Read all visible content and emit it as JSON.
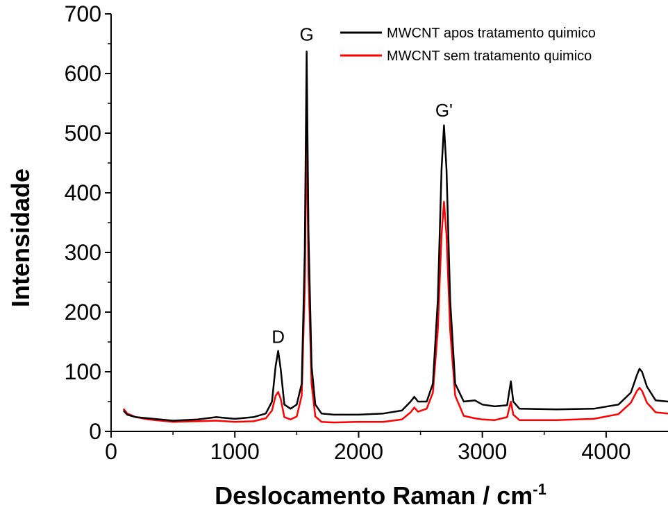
{
  "chart_data": {
    "type": "line",
    "xlabel": "Deslocamento Raman / cm",
    "xlabel_superscript": "-1",
    "ylabel": "Intensidade",
    "xlim": [
      0,
      4500
    ],
    "ylim": [
      0,
      700
    ],
    "x_ticks": [
      0,
      1000,
      2000,
      3000,
      4000
    ],
    "y_ticks": [
      0,
      100,
      200,
      300,
      400,
      500,
      600,
      700
    ],
    "legend_position": "top-right",
    "annotations": [
      {
        "text": "D",
        "x": 1350,
        "y": 148
      },
      {
        "text": "G",
        "x": 1580,
        "y": 655
      },
      {
        "text": "G'",
        "x": 2690,
        "y": 528
      }
    ],
    "series": [
      {
        "name": "MWCNT apos tratamento quimico",
        "color": "#000000",
        "points": [
          [
            100,
            35
          ],
          [
            130,
            28
          ],
          [
            200,
            24
          ],
          [
            300,
            22
          ],
          [
            500,
            18
          ],
          [
            700,
            20
          ],
          [
            850,
            24
          ],
          [
            1000,
            21
          ],
          [
            1150,
            24
          ],
          [
            1250,
            30
          ],
          [
            1300,
            50
          ],
          [
            1330,
            110
          ],
          [
            1350,
            135
          ],
          [
            1370,
            105
          ],
          [
            1400,
            45
          ],
          [
            1450,
            38
          ],
          [
            1500,
            45
          ],
          [
            1540,
            80
          ],
          [
            1565,
            300
          ],
          [
            1580,
            637
          ],
          [
            1595,
            330
          ],
          [
            1620,
            110
          ],
          [
            1650,
            45
          ],
          [
            1700,
            30
          ],
          [
            1800,
            28
          ],
          [
            2000,
            28
          ],
          [
            2200,
            30
          ],
          [
            2350,
            35
          ],
          [
            2420,
            50
          ],
          [
            2450,
            58
          ],
          [
            2480,
            50
          ],
          [
            2550,
            50
          ],
          [
            2600,
            80
          ],
          [
            2640,
            220
          ],
          [
            2670,
            440
          ],
          [
            2690,
            513
          ],
          [
            2710,
            440
          ],
          [
            2740,
            220
          ],
          [
            2780,
            80
          ],
          [
            2850,
            50
          ],
          [
            2940,
            52
          ],
          [
            3000,
            45
          ],
          [
            3100,
            42
          ],
          [
            3200,
            44
          ],
          [
            3230,
            84
          ],
          [
            3250,
            50
          ],
          [
            3300,
            38
          ],
          [
            3600,
            37
          ],
          [
            3900,
            38
          ],
          [
            4100,
            45
          ],
          [
            4200,
            65
          ],
          [
            4250,
            95
          ],
          [
            4270,
            105
          ],
          [
            4290,
            100
          ],
          [
            4330,
            75
          ],
          [
            4400,
            52
          ],
          [
            4500,
            50
          ]
        ]
      },
      {
        "name": "MWCNT sem tratamento quimico",
        "color": "#ff0000",
        "points": [
          [
            100,
            38
          ],
          [
            130,
            30
          ],
          [
            200,
            24
          ],
          [
            300,
            20
          ],
          [
            500,
            16
          ],
          [
            700,
            17
          ],
          [
            850,
            18
          ],
          [
            1000,
            16
          ],
          [
            1150,
            17
          ],
          [
            1250,
            22
          ],
          [
            1300,
            35
          ],
          [
            1330,
            60
          ],
          [
            1350,
            66
          ],
          [
            1370,
            55
          ],
          [
            1400,
            24
          ],
          [
            1450,
            20
          ],
          [
            1500,
            25
          ],
          [
            1540,
            60
          ],
          [
            1565,
            240
          ],
          [
            1580,
            518
          ],
          [
            1595,
            260
          ],
          [
            1620,
            80
          ],
          [
            1650,
            25
          ],
          [
            1700,
            16
          ],
          [
            1800,
            15
          ],
          [
            2000,
            16
          ],
          [
            2200,
            16
          ],
          [
            2350,
            20
          ],
          [
            2420,
            32
          ],
          [
            2450,
            40
          ],
          [
            2480,
            33
          ],
          [
            2550,
            38
          ],
          [
            2600,
            65
          ],
          [
            2640,
            170
          ],
          [
            2670,
            330
          ],
          [
            2690,
            385
          ],
          [
            2710,
            330
          ],
          [
            2740,
            170
          ],
          [
            2780,
            60
          ],
          [
            2850,
            26
          ],
          [
            2940,
            22
          ],
          [
            3000,
            20
          ],
          [
            3100,
            19
          ],
          [
            3200,
            24
          ],
          [
            3230,
            50
          ],
          [
            3250,
            28
          ],
          [
            3300,
            19
          ],
          [
            3600,
            19
          ],
          [
            3900,
            21
          ],
          [
            4100,
            29
          ],
          [
            4200,
            48
          ],
          [
            4250,
            68
          ],
          [
            4270,
            73
          ],
          [
            4290,
            68
          ],
          [
            4330,
            48
          ],
          [
            4400,
            32
          ],
          [
            4500,
            30
          ]
        ]
      }
    ]
  }
}
